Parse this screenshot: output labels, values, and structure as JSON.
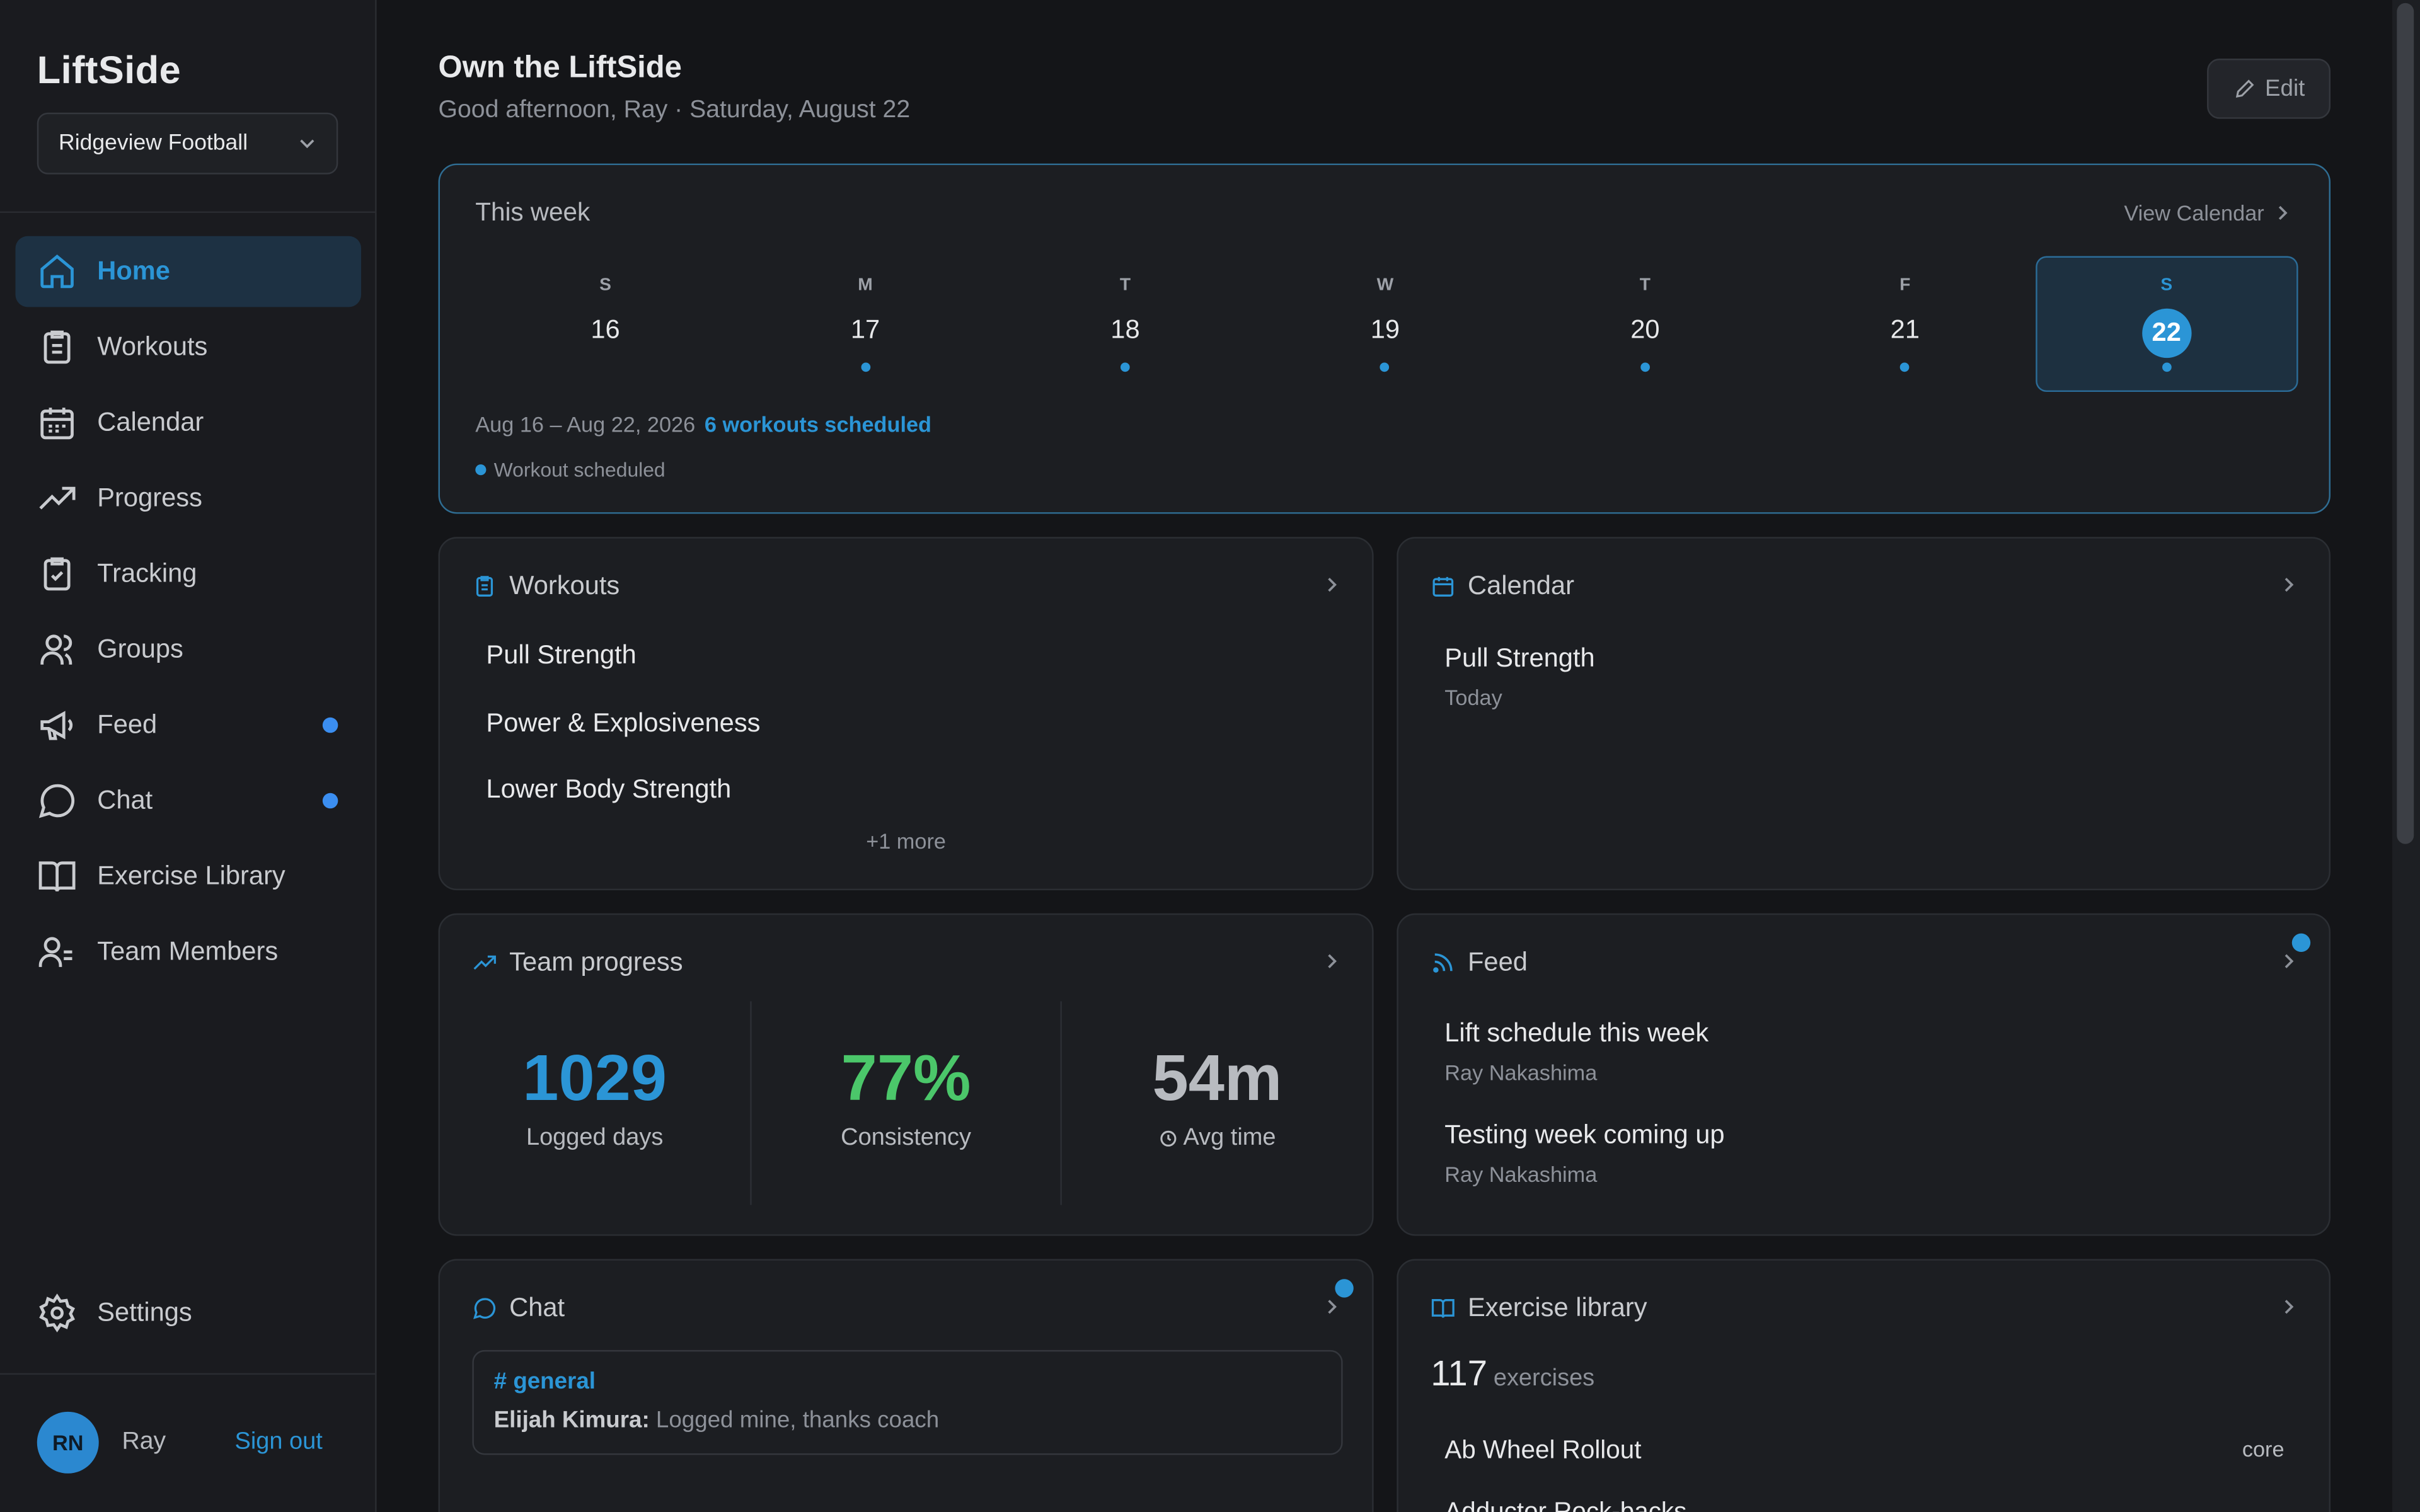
{
  "app": {
    "name": "LiftSide",
    "team": "Ridgeview Football"
  },
  "nav": [
    {
      "label": "Home",
      "icon": "home-icon",
      "active": true
    },
    {
      "label": "Workouts",
      "icon": "clipboard-list-icon"
    },
    {
      "label": "Calendar",
      "icon": "calendar-icon"
    },
    {
      "label": "Progress",
      "icon": "trending-up-icon"
    },
    {
      "label": "Tracking",
      "icon": "clipboard-check-icon"
    },
    {
      "label": "Groups",
      "icon": "users-icon"
    },
    {
      "label": "Feed",
      "icon": "megaphone-icon",
      "badge": true
    },
    {
      "label": "Chat",
      "icon": "chat-bubble-icon",
      "badge": true
    },
    {
      "label": "Exercise Library",
      "icon": "book-icon"
    },
    {
      "label": "Team Members",
      "icon": "team-icon"
    }
  ],
  "settings": {
    "label": "Settings"
  },
  "user": {
    "initials": "RN",
    "name": "Ray",
    "sign_out": "Sign out"
  },
  "header": {
    "title": "Own the LiftSide",
    "subtitle": "Good afternoon, Ray · Saturday, August 22",
    "edit": "Edit"
  },
  "week": {
    "title": "This week",
    "view_calendar": "View Calendar",
    "days": [
      {
        "letter": "S",
        "num": "16",
        "dot": false
      },
      {
        "letter": "M",
        "num": "17",
        "dot": true
      },
      {
        "letter": "T",
        "num": "18",
        "dot": true
      },
      {
        "letter": "W",
        "num": "19",
        "dot": true
      },
      {
        "letter": "T",
        "num": "20",
        "dot": true
      },
      {
        "letter": "F",
        "num": "21",
        "dot": true
      },
      {
        "letter": "S",
        "num": "22",
        "dot": true,
        "selected": true
      }
    ],
    "range": "Aug 16 – Aug 22, 2026",
    "scheduled": "6 workouts scheduled",
    "legend": "Workout scheduled"
  },
  "workouts": {
    "title": "Workouts",
    "items": [
      "Pull Strength",
      "Power & Explosiveness",
      "Lower Body Strength"
    ],
    "more": "+1 more"
  },
  "calendar": {
    "title": "Calendar",
    "item": "Pull Strength",
    "when": "Today"
  },
  "progress": {
    "title": "Team progress",
    "stats": [
      {
        "value": "1029",
        "label": "Logged days",
        "color": "#2b95d6"
      },
      {
        "value": "77%",
        "label": "Consistency",
        "color": "#4bc76a"
      },
      {
        "value": "54m",
        "label": "Avg time",
        "color": "#b8bbc0"
      }
    ]
  },
  "feed": {
    "title": "Feed",
    "items": [
      {
        "title": "Lift schedule this week",
        "author": "Ray Nakashima"
      },
      {
        "title": "Testing week coming up",
        "author": "Ray Nakashima"
      }
    ]
  },
  "chat": {
    "title": "Chat",
    "channel": "# general",
    "sender": "Elijah Kimura:",
    "message": "Logged mine, thanks coach"
  },
  "library": {
    "title": "Exercise library",
    "count": "117",
    "count_label": "exercises",
    "items": [
      {
        "name": "Ab Wheel Rollout",
        "tag": "core"
      },
      {
        "name": "Adductor Rock-backs",
        "tag": ""
      }
    ]
  }
}
